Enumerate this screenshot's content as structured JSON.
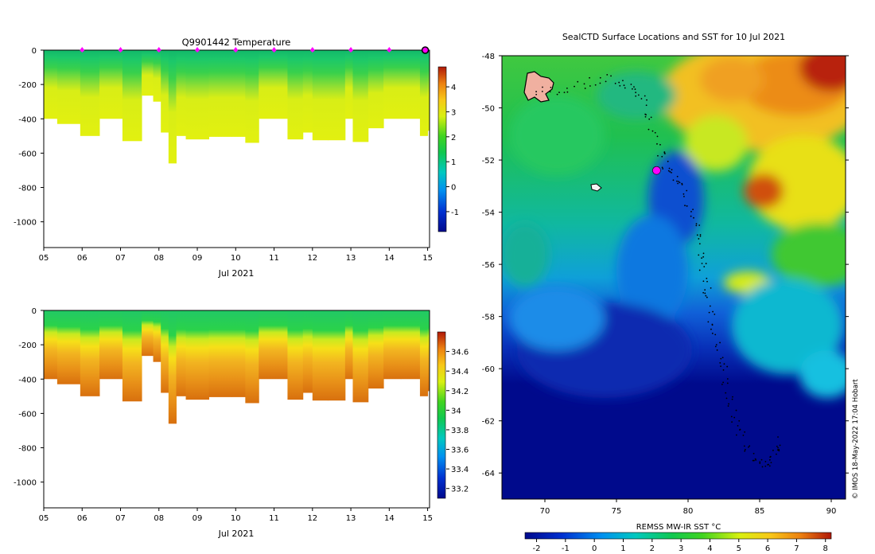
{
  "chart_data": [
    {
      "type": "heatmap",
      "title": "Q9901442  Temperature",
      "xlabel": "Jul 2021",
      "ylabel": "",
      "x_ticks": [
        "05",
        "06",
        "07",
        "08",
        "09",
        "10",
        "11",
        "12",
        "13",
        "14",
        "15"
      ],
      "y_ticks": [
        0,
        -200,
        -400,
        -600,
        -800,
        -1000
      ],
      "ylim": [
        -1150,
        0
      ],
      "xlim": [
        5,
        15.05
      ],
      "colorbar": {
        "min": -1.8,
        "max": 4.8,
        "ticks": [
          -1,
          0,
          1,
          2,
          3,
          4
        ]
      },
      "profile_markers_x": [
        6,
        7,
        8,
        9,
        10,
        11,
        12,
        13,
        14
      ],
      "current_marker_x": 15,
      "profiles": [
        {
          "x": 5.0,
          "depth": 400
        },
        {
          "x": 5.35,
          "depth": 430
        },
        {
          "x": 5.95,
          "depth": 500
        },
        {
          "x": 6.45,
          "depth": 400
        },
        {
          "x": 7.05,
          "depth": 530
        },
        {
          "x": 7.55,
          "depth": 265
        },
        {
          "x": 7.85,
          "depth": 300
        },
        {
          "x": 8.05,
          "depth": 480
        },
        {
          "x": 8.25,
          "depth": 660
        },
        {
          "x": 8.45,
          "depth": 500
        },
        {
          "x": 8.7,
          "depth": 520
        },
        {
          "x": 9.3,
          "depth": 505
        },
        {
          "x": 9.9,
          "depth": 505
        },
        {
          "x": 10.25,
          "depth": 540
        },
        {
          "x": 10.6,
          "depth": 400
        },
        {
          "x": 11.35,
          "depth": 520
        },
        {
          "x": 11.75,
          "depth": 480
        },
        {
          "x": 12.0,
          "depth": 525
        },
        {
          "x": 12.4,
          "depth": 525
        },
        {
          "x": 12.85,
          "depth": 400
        },
        {
          "x": 13.05,
          "depth": 535
        },
        {
          "x": 13.45,
          "depth": 455
        },
        {
          "x": 13.85,
          "depth": 400
        },
        {
          "x": 14.3,
          "depth": 400
        },
        {
          "x": 14.8,
          "depth": 500
        },
        {
          "x": 15.0,
          "depth": 470
        }
      ]
    },
    {
      "type": "heatmap",
      "title": "",
      "xlabel": "Jul 2021",
      "ylabel": "",
      "x_ticks": [
        "05",
        "06",
        "07",
        "08",
        "09",
        "10",
        "11",
        "12",
        "13",
        "14",
        "15"
      ],
      "y_ticks": [
        0,
        -200,
        -400,
        -600,
        -800,
        -1000
      ],
      "ylim": [
        -1150,
        0
      ],
      "xlim": [
        5,
        15.05
      ],
      "colorbar": {
        "min": 33.1,
        "max": 34.8,
        "ticks": [
          33.2,
          33.4,
          33.6,
          33.8,
          34,
          34.2,
          34.4,
          34.6
        ]
      }
    },
    {
      "type": "heatmap",
      "title": "SealCTD Surface Locations and SST for 10 Jul 2021",
      "xlabel": "",
      "x_ticks": [
        70,
        75,
        80,
        85,
        90
      ],
      "y_ticks": [
        -48,
        -50,
        -52,
        -54,
        -56,
        -58,
        -60,
        -62,
        -64
      ],
      "xlim": [
        67,
        91
      ],
      "ylim": [
        -65,
        -48
      ],
      "current_position": {
        "lon": 77.8,
        "lat": -52.4
      },
      "colorbar": {
        "label": "REMSS MW-IR SST °C",
        "min": -2.4,
        "max": 8.2,
        "ticks": [
          -2,
          -1,
          0,
          1,
          2,
          3,
          4,
          5,
          6,
          7,
          8
        ]
      },
      "credit": "© IMOS 18-May-2022 17:04 Hobart"
    }
  ]
}
